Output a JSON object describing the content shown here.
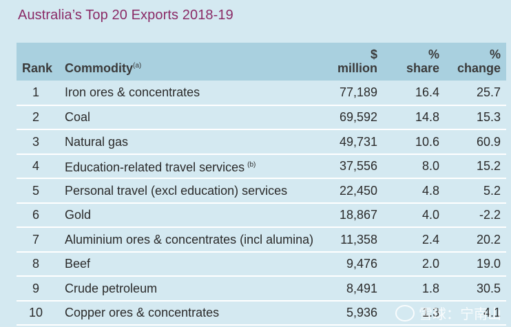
{
  "title": "Australia’s Top 20 Exports 2018-19",
  "headers": {
    "rank": "Rank",
    "commodity": "Commodity",
    "commodity_note": "(a)",
    "value_line1": "$",
    "value_line2": "million",
    "share_line1": "%",
    "share_line2": "share",
    "change_line1": "%",
    "change_line2": "change"
  },
  "rows": [
    {
      "rank": "1",
      "commodity": "Iron ores & concentrates",
      "note": "",
      "value": "77,189",
      "share": "16.4",
      "change": "25.7"
    },
    {
      "rank": "2",
      "commodity": "Coal",
      "note": "",
      "value": "69,592",
      "share": "14.8",
      "change": "15.3"
    },
    {
      "rank": "3",
      "commodity": "Natural gas",
      "note": "",
      "value": "49,731",
      "share": "10.6",
      "change": "60.9"
    },
    {
      "rank": "4",
      "commodity": "Education-related travel services",
      "note": "(b)",
      "value": "37,556",
      "share": "8.0",
      "change": "15.2"
    },
    {
      "rank": "5",
      "commodity": "Personal travel (excl education) services",
      "note": "",
      "value": "22,450",
      "share": "4.8",
      "change": "5.2"
    },
    {
      "rank": "6",
      "commodity": "Gold",
      "note": "",
      "value": "18,867",
      "share": "4.0",
      "change": "-2.2"
    },
    {
      "rank": "7",
      "commodity": "Aluminium ores & concentrates (incl alumina)",
      "note": "",
      "value": "11,358",
      "share": "2.4",
      "change": "20.2"
    },
    {
      "rank": "8",
      "commodity": "Beef",
      "note": "",
      "value": "9,476",
      "share": "2.0",
      "change": "19.0"
    },
    {
      "rank": "9",
      "commodity": "Crude petroleum",
      "note": "",
      "value": "8,491",
      "share": "1.8",
      "change": "30.5"
    },
    {
      "rank": "10",
      "commodity": "Copper ores & concentrates",
      "note": "",
      "value": "5,936",
      "share": "1.3",
      "change": "4.1"
    }
  ],
  "watermark": "雪球：宁南山"
}
